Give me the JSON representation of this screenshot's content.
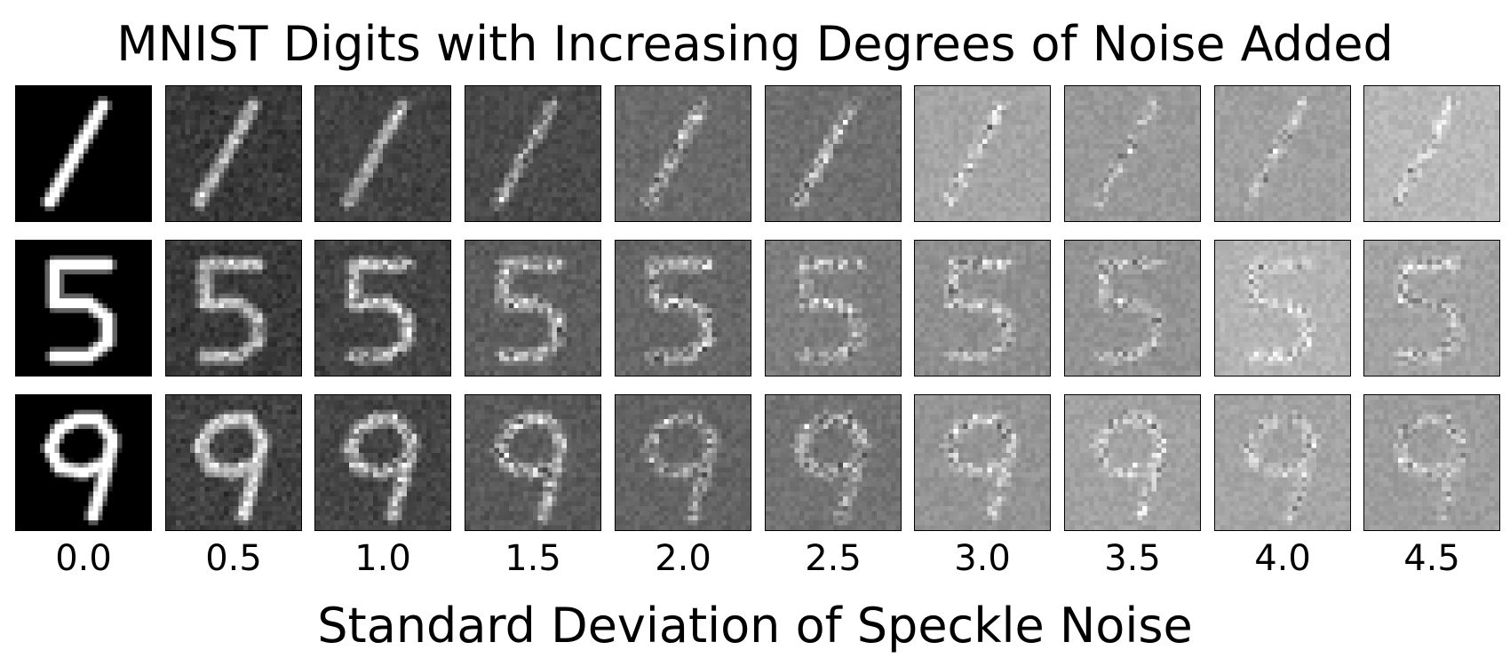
{
  "chart_data": {
    "type": "image-grid",
    "title": "MNIST Digits with Increasing Degrees of Noise Added",
    "xlabel": "Standard Deviation of Speckle Noise",
    "columns": [
      "0.0",
      "0.5",
      "1.0",
      "1.5",
      "2.0",
      "2.5",
      "3.0",
      "3.5",
      "4.0",
      "4.5"
    ],
    "noise_std": [
      0.0,
      0.5,
      1.0,
      1.5,
      2.0,
      2.5,
      3.0,
      3.5,
      4.0,
      4.5
    ],
    "rows": [
      {
        "digit": 1
      },
      {
        "digit": 5
      },
      {
        "digit": 9
      }
    ],
    "colormap": "gray",
    "image_size": 28
  }
}
